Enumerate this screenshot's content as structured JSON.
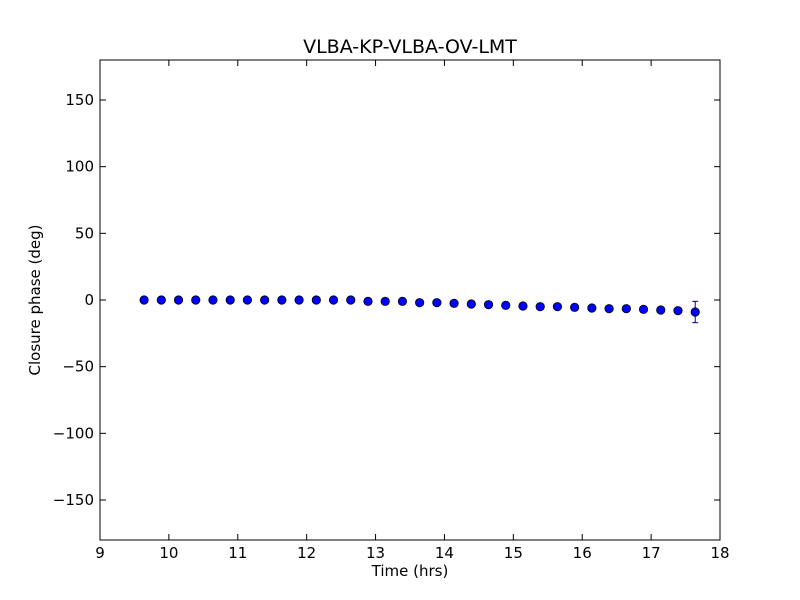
{
  "chart_data": {
    "type": "scatter",
    "title": "VLBA-KP-VLBA-OV-LMT",
    "xlabel": "Time (hrs)",
    "ylabel": "Closure phase (deg)",
    "xlim": [
      9,
      18
    ],
    "ylim": [
      -180,
      180
    ],
    "xticks": [
      9,
      10,
      11,
      12,
      13,
      14,
      15,
      16,
      17,
      18
    ],
    "xtick_labels": [
      "9",
      "10",
      "11",
      "12",
      "13",
      "14",
      "15",
      "16",
      "17",
      "18"
    ],
    "yticks": [
      -150,
      -100,
      -50,
      0,
      50,
      100,
      150
    ],
    "ytick_labels": [
      "−150",
      "−100",
      "−50",
      "0",
      "50",
      "100",
      "150"
    ],
    "grid": false,
    "marker_color": "#0000ff",
    "errorbar_color": "#00008b",
    "series": [
      {
        "points": [
          {
            "x": 9.64,
            "y": 0.0,
            "err": 0.6
          },
          {
            "x": 9.89,
            "y": 0.0,
            "err": 0.6
          },
          {
            "x": 10.14,
            "y": 0.0,
            "err": 0.6
          },
          {
            "x": 10.39,
            "y": 0.0,
            "err": 0.6
          },
          {
            "x": 10.64,
            "y": 0.0,
            "err": 0.6
          },
          {
            "x": 10.89,
            "y": 0.0,
            "err": 0.6
          },
          {
            "x": 11.14,
            "y": 0.0,
            "err": 0.6
          },
          {
            "x": 11.39,
            "y": 0.0,
            "err": 0.6
          },
          {
            "x": 11.64,
            "y": 0.0,
            "err": 0.6
          },
          {
            "x": 11.89,
            "y": 0.0,
            "err": 0.6
          },
          {
            "x": 12.14,
            "y": 0.0,
            "err": 0.6
          },
          {
            "x": 12.39,
            "y": 0.0,
            "err": 0.6
          },
          {
            "x": 12.64,
            "y": 0.0,
            "err": 0.6
          },
          {
            "x": 12.89,
            "y": -1.0,
            "err": 0.6
          },
          {
            "x": 13.14,
            "y": -1.0,
            "err": 0.6
          },
          {
            "x": 13.39,
            "y": -1.0,
            "err": 0.6
          },
          {
            "x": 13.64,
            "y": -2.0,
            "err": 0.6
          },
          {
            "x": 13.89,
            "y": -2.0,
            "err": 0.6
          },
          {
            "x": 14.14,
            "y": -2.5,
            "err": 0.6
          },
          {
            "x": 14.39,
            "y": -3.0,
            "err": 0.6
          },
          {
            "x": 14.64,
            "y": -3.5,
            "err": 0.6
          },
          {
            "x": 14.89,
            "y": -4.0,
            "err": 0.6
          },
          {
            "x": 15.14,
            "y": -4.5,
            "err": 0.6
          },
          {
            "x": 15.39,
            "y": -5.0,
            "err": 0.6
          },
          {
            "x": 15.64,
            "y": -5.0,
            "err": 0.6
          },
          {
            "x": 15.89,
            "y": -5.5,
            "err": 0.6
          },
          {
            "x": 16.14,
            "y": -6.0,
            "err": 0.6
          },
          {
            "x": 16.39,
            "y": -6.5,
            "err": 0.6
          },
          {
            "x": 16.64,
            "y": -6.5,
            "err": 0.6
          },
          {
            "x": 16.89,
            "y": -7.0,
            "err": 0.6
          },
          {
            "x": 17.14,
            "y": -7.5,
            "err": 0.6
          },
          {
            "x": 17.39,
            "y": -8.0,
            "err": 0.6
          },
          {
            "x": 17.64,
            "y": -9.0,
            "err": 8.0
          }
        ]
      }
    ]
  }
}
